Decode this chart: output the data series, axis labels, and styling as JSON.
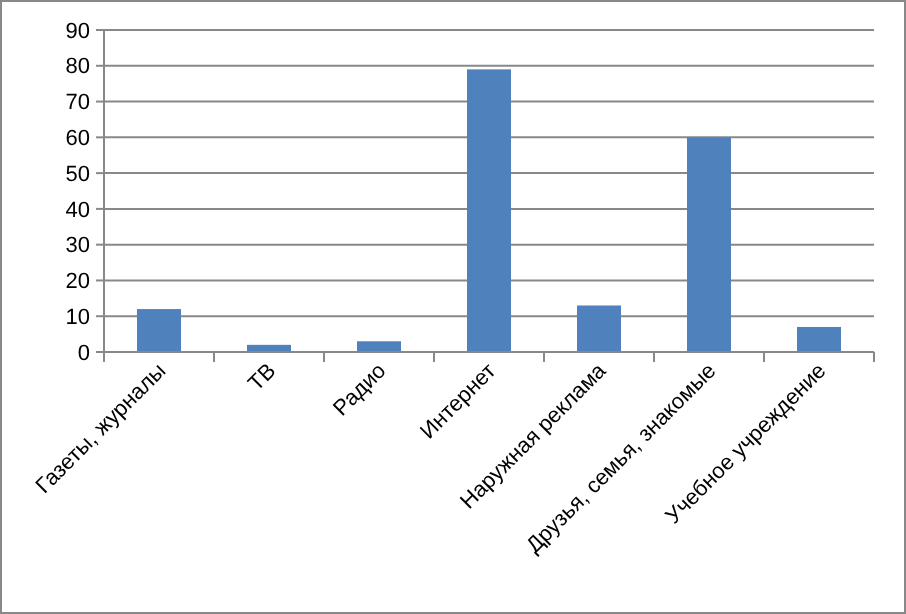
{
  "chart_data": {
    "type": "bar",
    "categories": [
      "Газеты, журналы",
      "ТВ",
      "Радио",
      "Интернет",
      "Наружная реклама",
      "Друзья, семья, знакомые",
      "Учебное учреждение"
    ],
    "values": [
      12,
      2,
      3,
      79,
      13,
      60,
      7
    ],
    "color": "#4f81bd",
    "ylim": [
      0,
      90
    ],
    "yticks": [
      0,
      10,
      20,
      30,
      40,
      50,
      60,
      70,
      80,
      90
    ],
    "grid": "y"
  }
}
